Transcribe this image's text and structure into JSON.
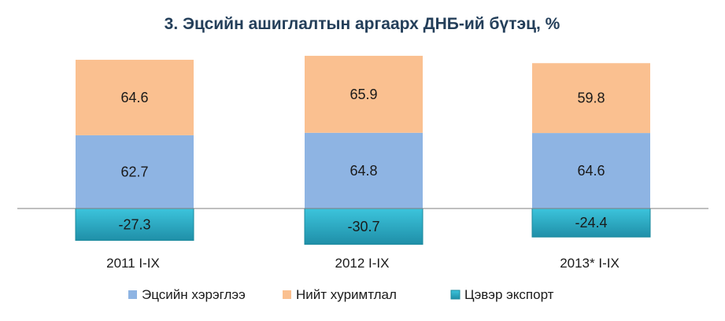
{
  "chart_data": {
    "type": "bar",
    "stacked": true,
    "title": "3. Эцсийн ашиглалтын аргаарх  ДНБ-ий  бүтэц, %",
    "categories": [
      "2011 I-IX",
      "2012  I-IX",
      "2013* I-IX"
    ],
    "series": [
      {
        "name": "Эцсийн хэрэглээ",
        "values": [
          62.7,
          64.8,
          64.6
        ],
        "color": "#8eb4e3"
      },
      {
        "name": "Нийт хуримтлал",
        "values": [
          64.6,
          65.9,
          59.8
        ],
        "color": "#fac090"
      },
      {
        "name": "Цэвэр экспорт",
        "values": [
          -27.3,
          -30.7,
          -24.4
        ],
        "color": "#31b0c8"
      }
    ],
    "ylim": [
      -35,
      135
    ],
    "grid": false,
    "legend_position": "bottom"
  }
}
